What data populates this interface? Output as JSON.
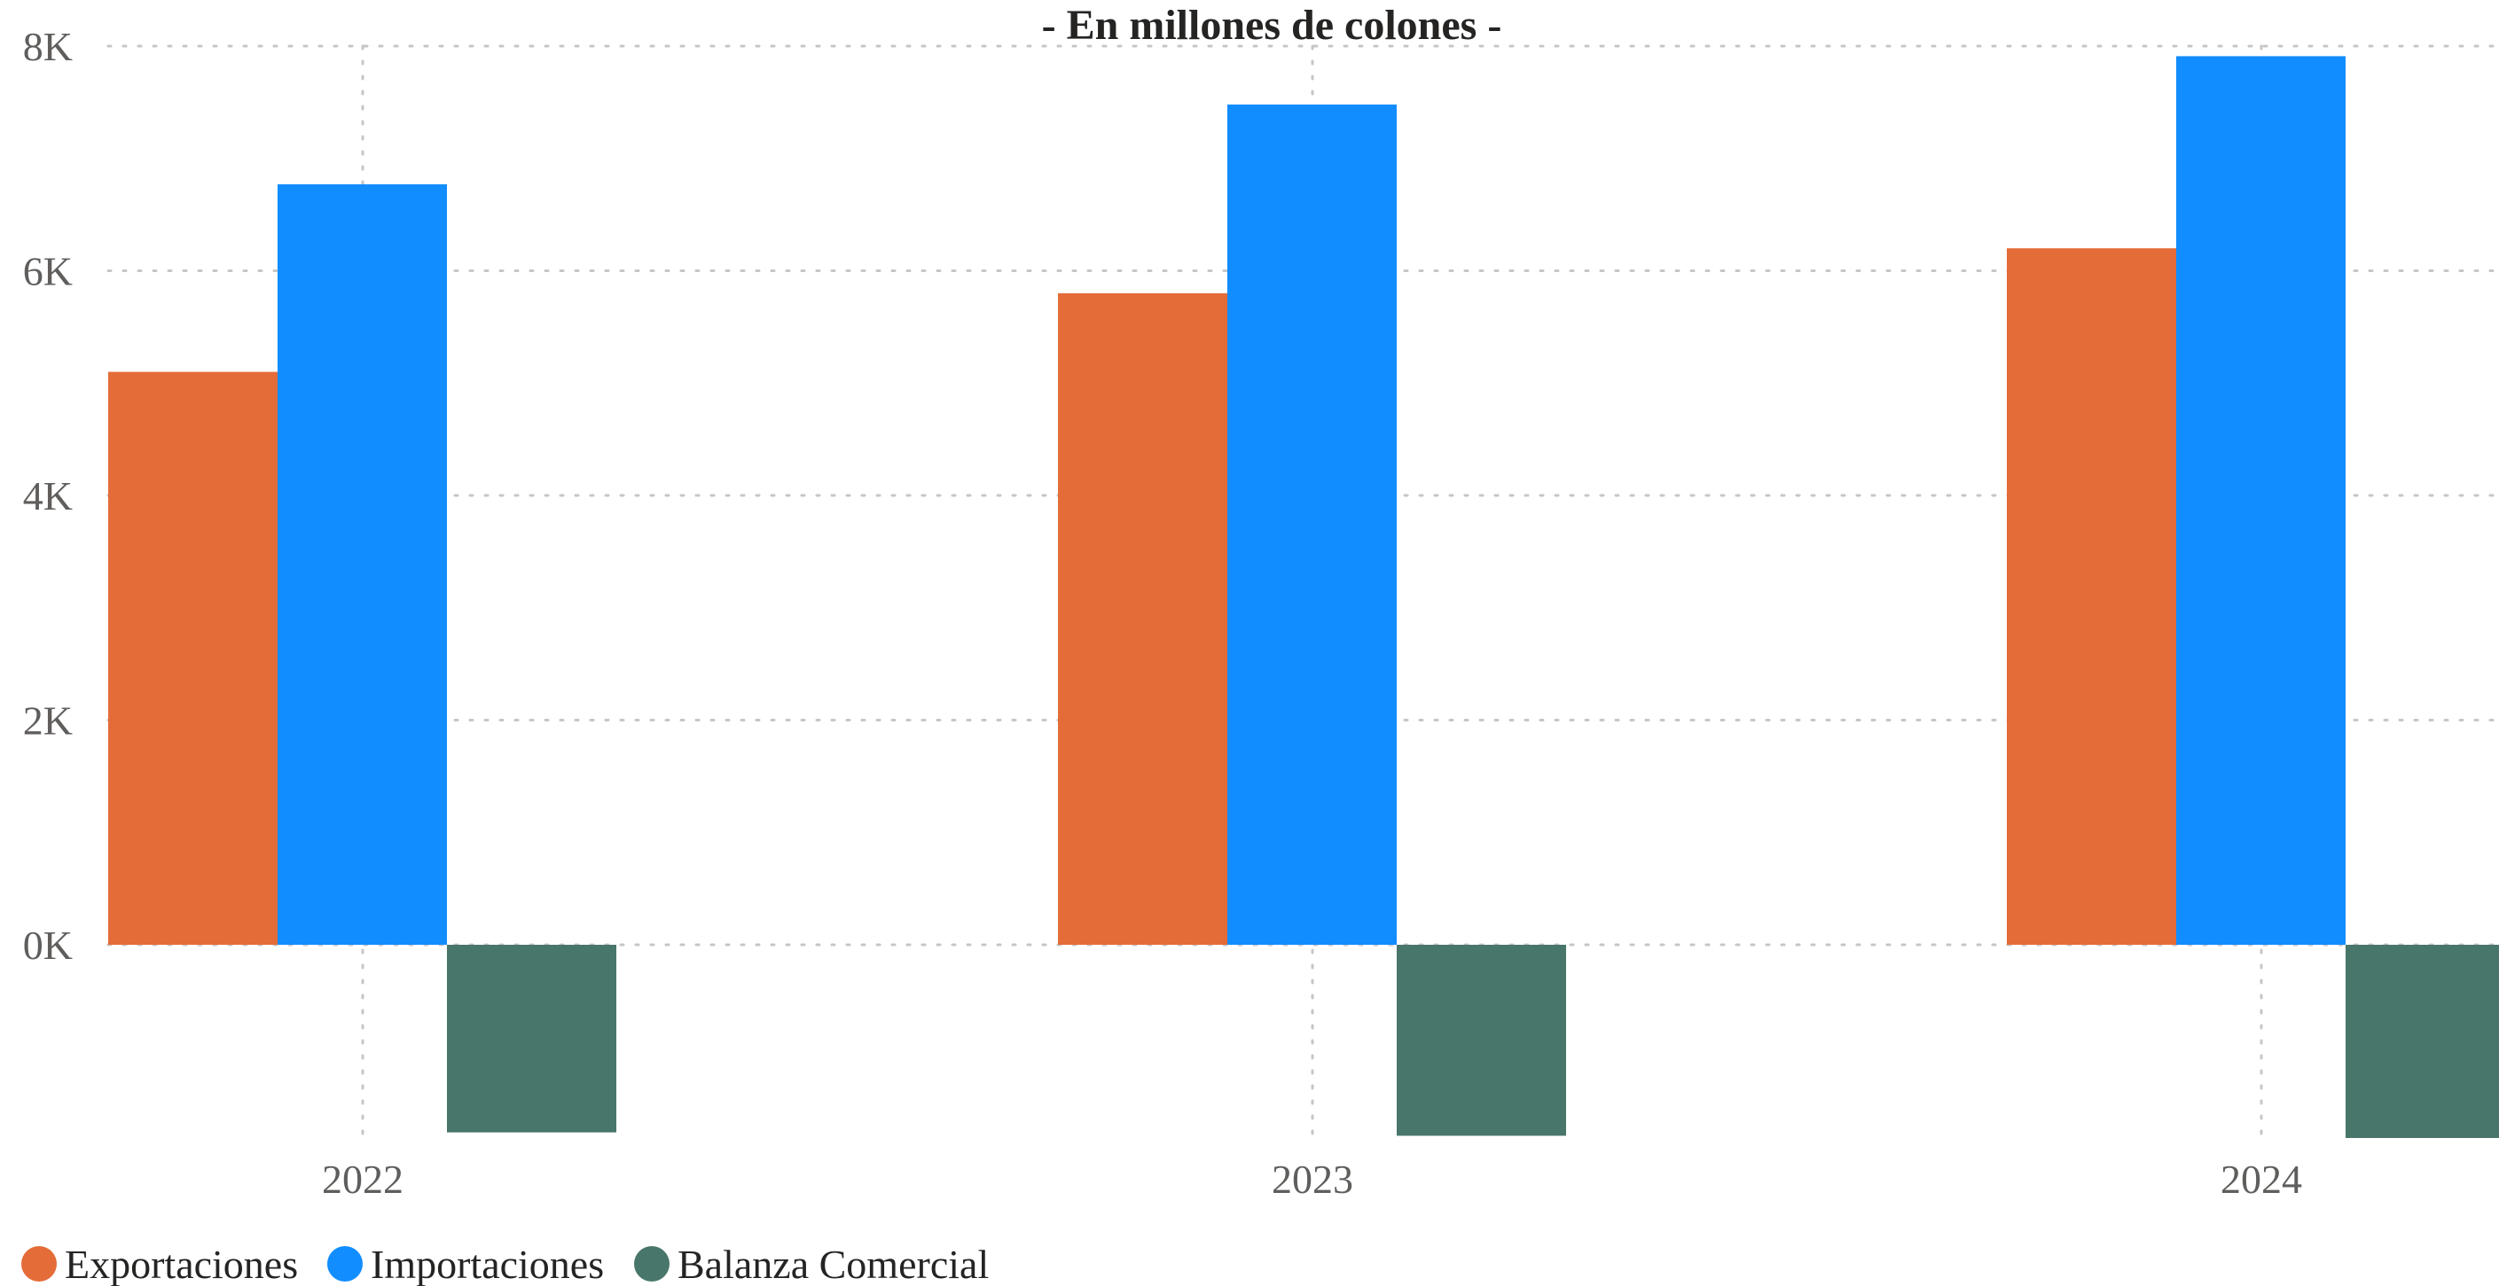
{
  "chart_data": {
    "type": "bar",
    "title": "- En millones de colones -",
    "categories": [
      "2022",
      "2023",
      "2024"
    ],
    "series": [
      {
        "name": "Exportaciones",
        "color": "#E46C39",
        "values": [
          5100,
          5800,
          6200
        ]
      },
      {
        "name": "Importaciones",
        "color": "#118DFF",
        "values": [
          6770,
          7480,
          7910
        ]
      },
      {
        "name": "Balanza Comercial",
        "color": "#48766A",
        "values": [
          -1670,
          -1700,
          -1720
        ]
      }
    ],
    "y_ticks": [
      {
        "value": 8000,
        "label": "8K"
      },
      {
        "value": 6000,
        "label": "6K"
      },
      {
        "value": 4000,
        "label": "4K"
      },
      {
        "value": 2000,
        "label": "2K"
      },
      {
        "value": 0,
        "label": "0K"
      }
    ],
    "ylim": [
      -1800,
      8000
    ],
    "grid": true,
    "legend_position": "bottom-left"
  }
}
